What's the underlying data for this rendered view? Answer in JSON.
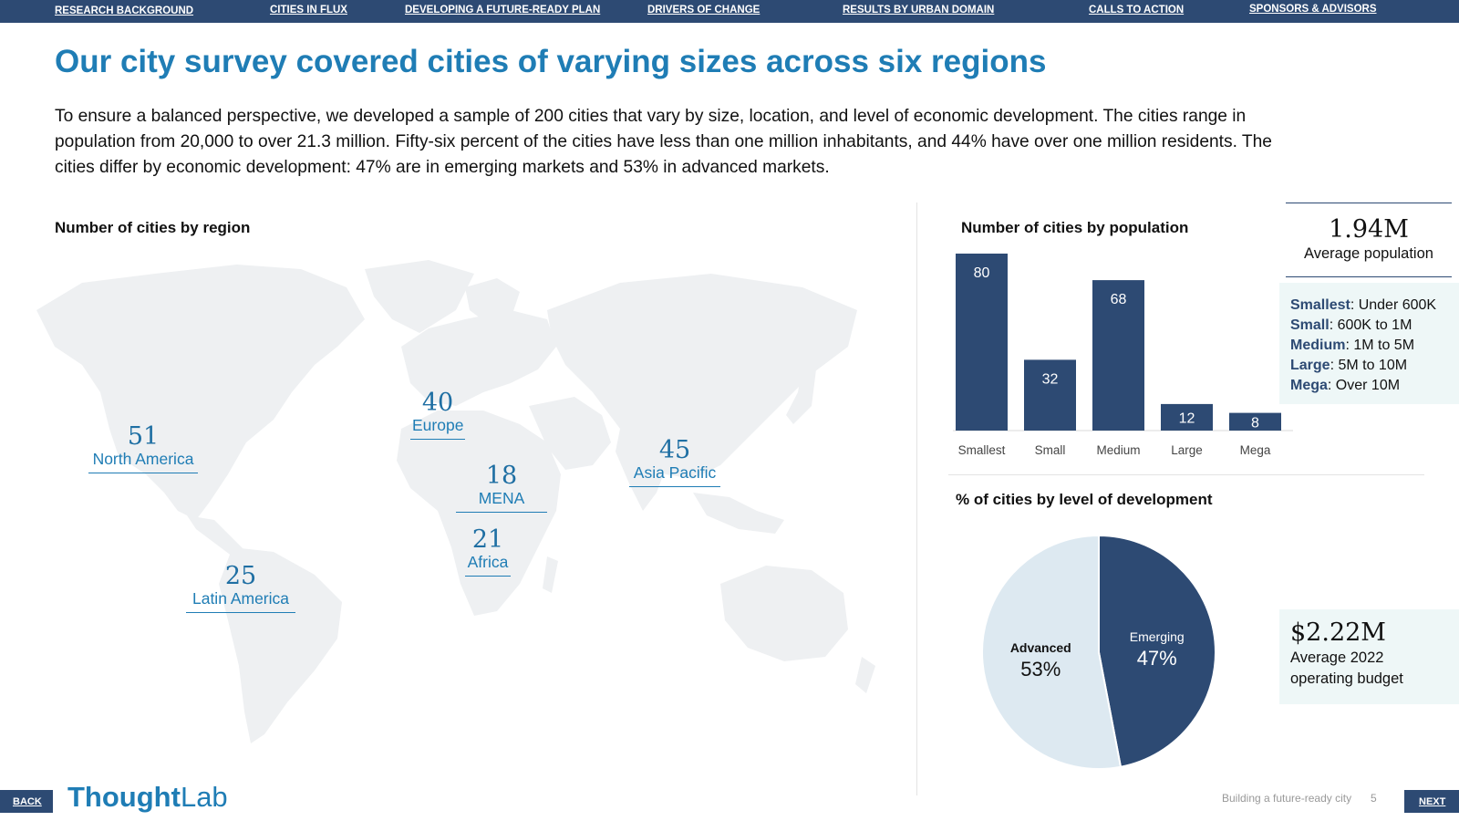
{
  "nav": {
    "items": [
      "RESEARCH BACKGROUND",
      "CITIES IN FLUX",
      "DEVELOPING A FUTURE-READY PLAN",
      "DRIVERS OF CHANGE",
      "RESULTS BY URBAN DOMAIN",
      "CALLS TO ACTION",
      "SPONSORS & ADVISORS"
    ]
  },
  "page": {
    "title": "Our city survey covered cities of varying sizes across six regions",
    "intro": "To ensure a balanced perspective, we developed a sample of 200 cities that vary by size, location, and level of economic development. The cities range in population from 20,000 to over 21.3 million. Fifty-six percent of the cities have less than one million inhabitants, and 44% have over one million residents. The cities differ by economic development: 47% are in emerging markets and 53% in advanced markets."
  },
  "map": {
    "label": "Number of cities by region",
    "regions": [
      {
        "name": "North America",
        "count": "51"
      },
      {
        "name": "Europe",
        "count": "40"
      },
      {
        "name": "MENA",
        "count": "18"
      },
      {
        "name": "Asia Pacific",
        "count": "45"
      },
      {
        "name": "Africa",
        "count": "21"
      },
      {
        "name": "Latin America",
        "count": "25"
      }
    ]
  },
  "stats": {
    "avg_population_value": "1.94M",
    "avg_population_label": "Average population",
    "size_legend": [
      {
        "term": "Smallest",
        "desc": ": Under 600K"
      },
      {
        "term": "Small",
        "desc": ": 600K to 1M"
      },
      {
        "term": "Medium",
        "desc": ": 1M to 5M"
      },
      {
        "term": "Large",
        "desc": ": 5M to 10M"
      },
      {
        "term": "Mega",
        "desc": ": Over 10M"
      }
    ],
    "budget_value": "$2.22M",
    "budget_label_line1": "Average 2022",
    "budget_label_line2": "operating budget"
  },
  "chart_data": [
    {
      "type": "bar",
      "title": "Number of cities by population",
      "categories": [
        "Smallest",
        "Small",
        "Medium",
        "Large",
        "Mega"
      ],
      "values": [
        80,
        32,
        68,
        12,
        8
      ],
      "ylim": [
        0,
        80
      ],
      "grid": false,
      "color": "#2d4a73"
    },
    {
      "type": "pie",
      "title": "% of cities by level of development",
      "labels": [
        "Emerging",
        "Advanced"
      ],
      "values": [
        47,
        53
      ],
      "value_labels": [
        "47%",
        "53%"
      ],
      "colors": [
        "#2d4a73",
        "#dde9f1"
      ]
    }
  ],
  "footer": {
    "back": "BACK",
    "next": "NEXT",
    "logo_bold": "Thought",
    "logo_light": "Lab",
    "report_title": "Building a future-ready city",
    "page_number": "5"
  },
  "colors": {
    "nav": "#2d4a73",
    "accent": "#1f7db5",
    "map_land": "#eef0f2",
    "panel": "#eef7f7"
  }
}
